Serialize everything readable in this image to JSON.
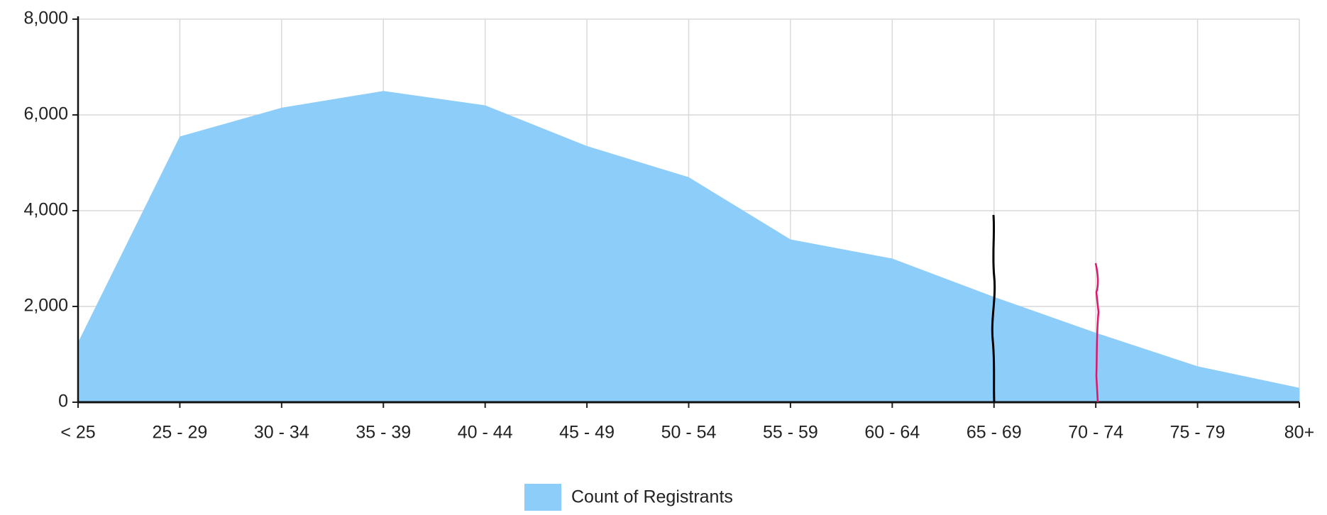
{
  "chart_data": {
    "type": "area",
    "categories": [
      "< 25",
      "25 - 29",
      "30 - 34",
      "35 - 39",
      "40 - 44",
      "45 - 49",
      "50 - 54",
      "55 - 59",
      "60 - 64",
      "65 - 69",
      "70 - 74",
      "75 - 79",
      "80+"
    ],
    "series": [
      {
        "name": "Count of Registrants",
        "color": "#8ccdf9",
        "values": [
          1250,
          5550,
          6150,
          6500,
          6200,
          5350,
          4700,
          3400,
          3000,
          2200,
          1450,
          750,
          300
        ]
      }
    ],
    "ylim": [
      0,
      8000
    ],
    "yticks": [
      0,
      {
        "value": 2000,
        "label": "2,000"
      },
      {
        "value": 4000,
        "label": "4,000"
      },
      {
        "value": 6000,
        "label": "6,000"
      },
      {
        "value": 8000,
        "label": "8,000"
      }
    ],
    "grid": true,
    "legend": "bottom"
  }
}
